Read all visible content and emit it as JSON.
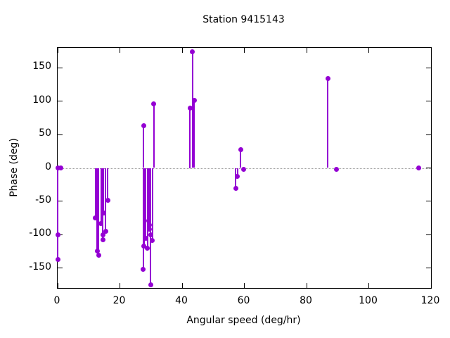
{
  "figure": {
    "title": "Station 9415143",
    "xlabel": "Angular speed (deg/hr)",
    "ylabel": "Phase (deg)"
  },
  "chart_data": {
    "type": "scatter",
    "style": "impulses-with-points",
    "title": "Station 9415143",
    "xlabel": "Angular speed (deg/hr)",
    "ylabel": "Phase (deg)",
    "xlim": [
      0,
      120
    ],
    "ylim": [
      -180,
      180
    ],
    "xticks": [
      0,
      20,
      40,
      60,
      80,
      100,
      120
    ],
    "yticks": [
      -150,
      -100,
      -50,
      0,
      50,
      100,
      150
    ],
    "grid": false,
    "legend": "none",
    "zero_line_y": 0,
    "zero_line_color": "#9a9a9a",
    "marker_color": "#9400d3",
    "points": [
      [
        0,
        -137
      ],
      [
        0,
        -100
      ],
      [
        0.2,
        0
      ],
      [
        1,
        0
      ],
      [
        12.1,
        -75
      ],
      [
        12.7,
        -125
      ],
      [
        13.2,
        -131
      ],
      [
        14.0,
        -83
      ],
      [
        14.5,
        -100
      ],
      [
        14.5,
        -108
      ],
      [
        14.8,
        -68
      ],
      [
        15.4,
        -95
      ],
      [
        16.1,
        -49
      ],
      [
        27.5,
        -152
      ],
      [
        27.6,
        63
      ],
      [
        27.7,
        -117
      ],
      [
        28.3,
        -106
      ],
      [
        28.9,
        -120
      ],
      [
        29.3,
        -79
      ],
      [
        29.4,
        -85
      ],
      [
        29.6,
        -92
      ],
      [
        29.9,
        -100
      ],
      [
        29.9,
        -175
      ],
      [
        30.4,
        -109
      ],
      [
        30.9,
        96
      ],
      [
        42.5,
        90
      ],
      [
        43.3,
        174
      ],
      [
        43.9,
        101
      ],
      [
        57.2,
        -31
      ],
      [
        57.8,
        -13
      ],
      [
        58.8,
        27
      ],
      [
        59.8,
        -2
      ],
      [
        86.8,
        134
      ],
      [
        89.7,
        -2
      ],
      [
        116,
        0
      ]
    ]
  }
}
